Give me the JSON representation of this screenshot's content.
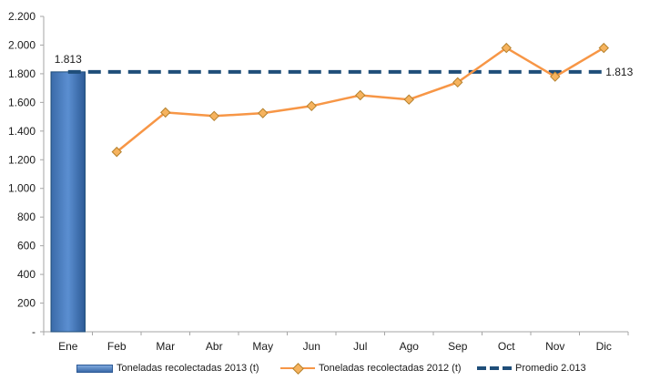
{
  "chart_data": {
    "type": "bar+line",
    "categories": [
      "Ene",
      "Feb",
      "Mar",
      "Abr",
      "May",
      "Jun",
      "Jul",
      "Ago",
      "Sep",
      "Oct",
      "Nov",
      "Dic"
    ],
    "ylim": [
      0,
      2200
    ],
    "yticks": [
      0,
      200,
      400,
      600,
      800,
      1000,
      1200,
      1400,
      1600,
      1800,
      2000,
      2200
    ],
    "ytick_labels": [
      "-",
      "200",
      "400",
      "600",
      "800",
      "1.000",
      "1.200",
      "1.400",
      "1.600",
      "1.800",
      "2.000",
      "2.200"
    ],
    "grid": false,
    "legend_position": "bottom",
    "series": [
      {
        "name": "Toneladas recolectadas 2013 (t)",
        "type": "bar",
        "color": "#4f81bd",
        "values": [
          1813,
          null,
          null,
          null,
          null,
          null,
          null,
          null,
          null,
          null,
          null,
          null
        ]
      },
      {
        "name": "Toneladas recolectadas 2012 (t)",
        "type": "line",
        "color": "#f79646",
        "marker": "diamond",
        "values": [
          null,
          1255,
          1530,
          1505,
          1525,
          1575,
          1650,
          1620,
          1740,
          1980,
          1780,
          1980
        ]
      },
      {
        "name": "Promedio 2.013",
        "type": "dashed-line",
        "color": "#1f4e79",
        "value": 1813
      }
    ],
    "annotations": {
      "bar_label": "1.813",
      "average_label": "1.813"
    }
  }
}
